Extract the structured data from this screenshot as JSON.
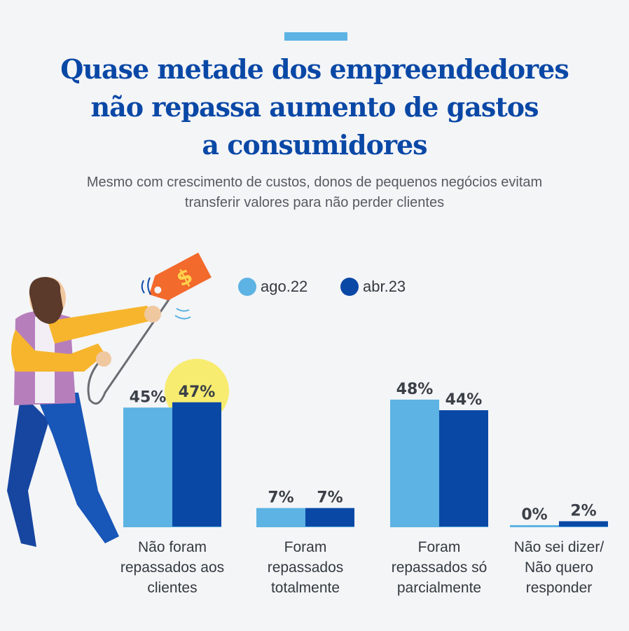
{
  "header": {
    "title_lines": [
      "Quase metade dos empreendedores",
      "não repassa aumento de gastos",
      "a consumidores"
    ],
    "subtitle_lines": [
      "Mesmo com crescimento de custos, donos de pequenos negócios evitam",
      "transferir valores para não perder clientes"
    ]
  },
  "colors": {
    "accent": "#5db3e3",
    "title": "#0a48a6",
    "highlight": "#f7ec6f"
  },
  "illustration": {
    "price_tag_symbol": "$"
  },
  "chart_data": {
    "type": "bar",
    "categories": [
      [
        "Não foram",
        "repassados aos",
        "clientes"
      ],
      [
        "Foram",
        "repassados",
        "totalmente"
      ],
      [
        "Foram",
        "repassados só",
        "parcialmente"
      ],
      [
        "Não sei dizer/",
        "Não quero",
        "responder"
      ]
    ],
    "series": [
      {
        "name": "ago.22",
        "color": "#5db3e3",
        "values": [
          45,
          7,
          48,
          0
        ],
        "labels": [
          "45%",
          "7%",
          "48%",
          "0%"
        ]
      },
      {
        "name": "abr.23",
        "color": "#0a48a6",
        "values": [
          47,
          7,
          44,
          2
        ],
        "labels": [
          "47%",
          "7%",
          "44%",
          "2%"
        ]
      }
    ],
    "highlighted": {
      "series": 1,
      "category": 0
    },
    "ylim": [
      0,
      48
    ],
    "grid": false,
    "legend_position": "top"
  }
}
